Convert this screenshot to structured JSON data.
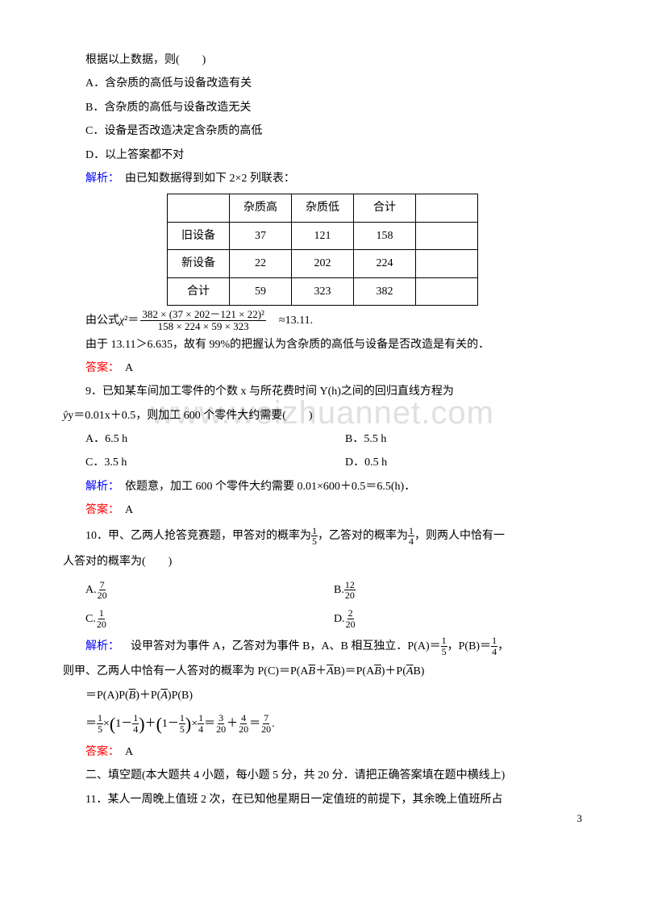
{
  "intro_line": "根据以上数据，则(　　)",
  "options_q8": {
    "a": "A．含杂质的高低与设备改造有关",
    "b": "B．含杂质的高低与设备改造无关",
    "c": "C．设备是否改造决定含杂质的高低",
    "d": "D．以上答案都不对"
  },
  "jiexi_label": "解析：",
  "jiexi_q8_text": "　由已知数据得到如下 2×2 列联表：",
  "table": {
    "headers": [
      "",
      "杂质高",
      "杂质低",
      "合计",
      ""
    ],
    "row1": [
      "旧设备",
      "37",
      "121",
      "158"
    ],
    "row2": [
      "新设备",
      "22",
      "202",
      "224"
    ],
    "row3": [
      "合计",
      "59",
      "323",
      "382"
    ]
  },
  "formula_prefix": "由公式 ",
  "formula_chi": "χ",
  "formula_eq": "²＝",
  "formula_num": "382 × (37 × 202－121 × 22)²",
  "formula_den": "158 × 224 × 59 × 323",
  "formula_approx": "　≈13.11.",
  "q8_conclusion": "由于 13.11＞6.635，故有 99%的把握认为含杂质的高低与设备是否改造是有关的．",
  "daan_label": "答案：",
  "daan_a": "　A",
  "q9_stem_l1": "9．已知某车间加工零件的个数 x 与所花费时间 Y(h)之间的回归直线方程为",
  "q9_stem_l2": "y＝0.01x＋0.5，则加工 600 个零件大约需要(　　)",
  "options_q9": {
    "a": "A．6.5 h",
    "b": "B．5.5 h",
    "c": "C．3.5 h",
    "d": "D．0.5 h"
  },
  "jiexi_q9": "　依题意，加工 600 个零件大约需要 0.01×600＋0.5＝6.5(h)．",
  "q10_pre": "10．甲、乙两人抢答竞赛题，甲答对的概率为",
  "q10_mid": "，乙答对的概率为",
  "q10_post": "，则两人中恰有一",
  "q10_line2": "人答对的概率为(　　)",
  "q10_opts": {
    "a_l": "A.",
    "a_n": "7",
    "a_d": "20",
    "b_l": "B.",
    "b_n": "12",
    "b_d": "20",
    "c_l": "C.",
    "c_n": "1",
    "c_d": "20",
    "d_l": "D.",
    "d_n": "2",
    "d_d": "20"
  },
  "jiexi_q10_l1_a": "　设甲答对为事件 A，乙答对为事件 B，A、B 相互独立．P(A)＝",
  "jiexi_q10_l1_b": "，P(B)＝",
  "jiexi_q10_l1_c": "，",
  "jiexi_q10_l2": "则甲、乙两人中恰有一人答对的概率为 P(C)＝P(A",
  "jiexi_q10_l2b": "＋",
  "jiexi_q10_l2c": "B)＝P(A",
  "jiexi_q10_l2d": ")＋P(",
  "jiexi_q10_l2e": "B)",
  "jiexi_q10_l3": "＝P(A)P(",
  "jiexi_q10_l3b": ")＋P(",
  "jiexi_q10_l3c": ")P(B)",
  "calc_eq": "＝",
  "calc_times": "×",
  "calc_plus": "＋",
  "section2": "二、填空题(本大题共 4 小题，每小题 5 分，共 20 分．请把正确答案填在题中横线上)",
  "q11": "11．某人一周晚上值班 2 次，在已知他星期日一定值班的前提下，其余晚上值班所占",
  "pagenum": "3",
  "watermark": "www.weizhuannet.com",
  "fracs": {
    "f15n": "1",
    "f15d": "5",
    "f14n": "1",
    "f14d": "4",
    "f320n": "3",
    "f320d": "20",
    "f420n": "4",
    "f420d": "20",
    "f720n": "7",
    "f720d": "20"
  }
}
